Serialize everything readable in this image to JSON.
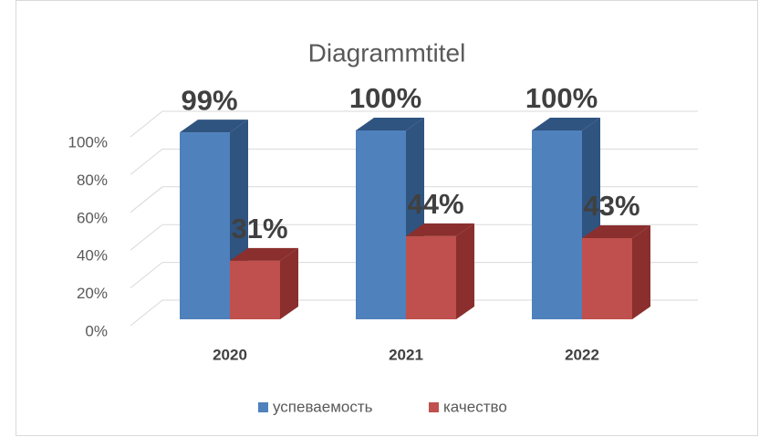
{
  "chart_data": {
    "type": "bar3d",
    "title": "Diagrammtitel",
    "categories": [
      "2020",
      "2021",
      "2022"
    ],
    "series": [
      {
        "name": "успеваемость",
        "color": "#4f81bd",
        "side_color": "#2f5480",
        "values": [
          99,
          100,
          100
        ],
        "value_labels": [
          "99%",
          "100%",
          "100%"
        ]
      },
      {
        "name": "качество",
        "color": "#c0504d",
        "side_color": "#8a2f2d",
        "values": [
          31,
          44,
          43
        ],
        "value_labels": [
          "31%",
          "44%",
          "43%"
        ]
      }
    ],
    "ylim": [
      0,
      100
    ],
    "yticks": [
      {
        "value": 0,
        "label": "0%"
      },
      {
        "value": 20,
        "label": "20%"
      },
      {
        "value": 40,
        "label": "40%"
      },
      {
        "value": 60,
        "label": "60%"
      },
      {
        "value": 80,
        "label": "80%"
      },
      {
        "value": 100,
        "label": "100%"
      }
    ],
    "grid": true,
    "legend": "bottom"
  }
}
